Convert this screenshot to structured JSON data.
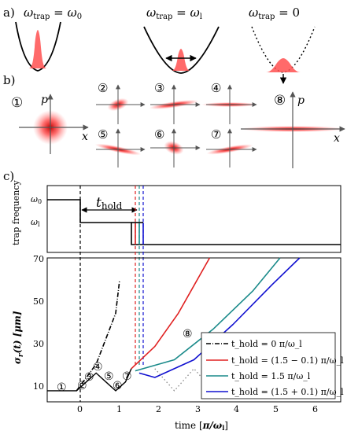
{
  "panel_labels": {
    "a": "a)",
    "b": "b)",
    "c": "c)"
  },
  "panel_a": {
    "titles": [
      "ω_trap = ω_0",
      "ω_trap = ω_l",
      "ω_trap = 0"
    ],
    "colors": {
      "density": "#ff4d4d",
      "potential": "#000000"
    }
  },
  "panel_b": {
    "axis_p": "p",
    "axis_x": "x",
    "markers": [
      "①",
      "②",
      "③",
      "④",
      "⑤",
      "⑥",
      "⑦",
      "⑧"
    ]
  },
  "panel_c": {
    "upper": {
      "ylabel": "trap frequency",
      "yticks": [
        "ω_0",
        "ω_l"
      ],
      "t_hold": "t_hold"
    },
    "lower": {
      "ylabel": "σ_r(t) [μm]",
      "yticks": [
        "10",
        "30",
        "50",
        "70"
      ],
      "xticks": [
        "0",
        "1",
        "2",
        "3",
        "4",
        "5",
        "6"
      ],
      "xlabel": "time [π/ω_l]",
      "markers": [
        "①",
        "②",
        "③",
        "④",
        "⑤",
        "⑥",
        "⑦",
        "⑧"
      ]
    },
    "legend": [
      "t_hold = 0 π/ω_l",
      "t_hold = (1.5 − 0.1) π/ω_l",
      "t_hold = 1.5 π/ω_l",
      "t_hold = (1.5 + 0.1) π/ω_l"
    ]
  },
  "chart_data": {
    "type": "line",
    "xlabel": "time [π/ω_l]",
    "ylabel": "σ_r(t) [μm]",
    "xlim": [
      -0.75,
      6.75
    ],
    "ylim": [
      5,
      70
    ],
    "series": [
      {
        "name": "t_hold = 0 π/ω_l",
        "color": "#000000",
        "style": "dashdot",
        "points": [
          [
            0,
            10
          ],
          [
            0.5,
            22
          ],
          [
            1.0,
            45
          ],
          [
            1.1,
            60
          ]
        ]
      },
      {
        "name": "t_hold = (1.5 − 0.1) π/ω_l",
        "color": "#e02020",
        "style": "solid",
        "points": [
          [
            1.4,
            20
          ],
          [
            2.0,
            30
          ],
          [
            2.6,
            45
          ],
          [
            3.4,
            70
          ]
        ]
      },
      {
        "name": "t_hold = 1.5 π/ω_l",
        "color": "#1a8a8a",
        "style": "solid",
        "points": [
          [
            1.5,
            19
          ],
          [
            2.5,
            24
          ],
          [
            3.5,
            38
          ],
          [
            4.5,
            55
          ],
          [
            5.2,
            70
          ]
        ]
      },
      {
        "name": "t_hold = (1.5 + 0.1) π/ω_l",
        "color": "#1010d0",
        "style": "solid",
        "points": [
          [
            1.6,
            18
          ],
          [
            2.0,
            16
          ],
          [
            3.0,
            24
          ],
          [
            4.0,
            40
          ],
          [
            5.0,
            58
          ],
          [
            5.7,
            70
          ]
        ]
      },
      {
        "name": "",
        "color": "#888888",
        "style": "dotted",
        "points": [
          [
            2.0,
            20
          ],
          [
            2.5,
            10
          ],
          [
            3.0,
            20
          ],
          [
            3.5,
            10
          ],
          [
            4.0,
            20
          ],
          [
            4.5,
            10
          ],
          [
            5.0,
            20
          ],
          [
            5.5,
            10
          ],
          [
            6.0,
            20
          ],
          [
            6.5,
            10
          ]
        ]
      }
    ],
    "upper_panel": {
      "ylabel": "trap frequency",
      "levels": [
        "ω_0",
        "ω_l",
        "0"
      ],
      "switch_times": [
        0,
        1.4,
        1.5,
        1.6
      ]
    }
  }
}
